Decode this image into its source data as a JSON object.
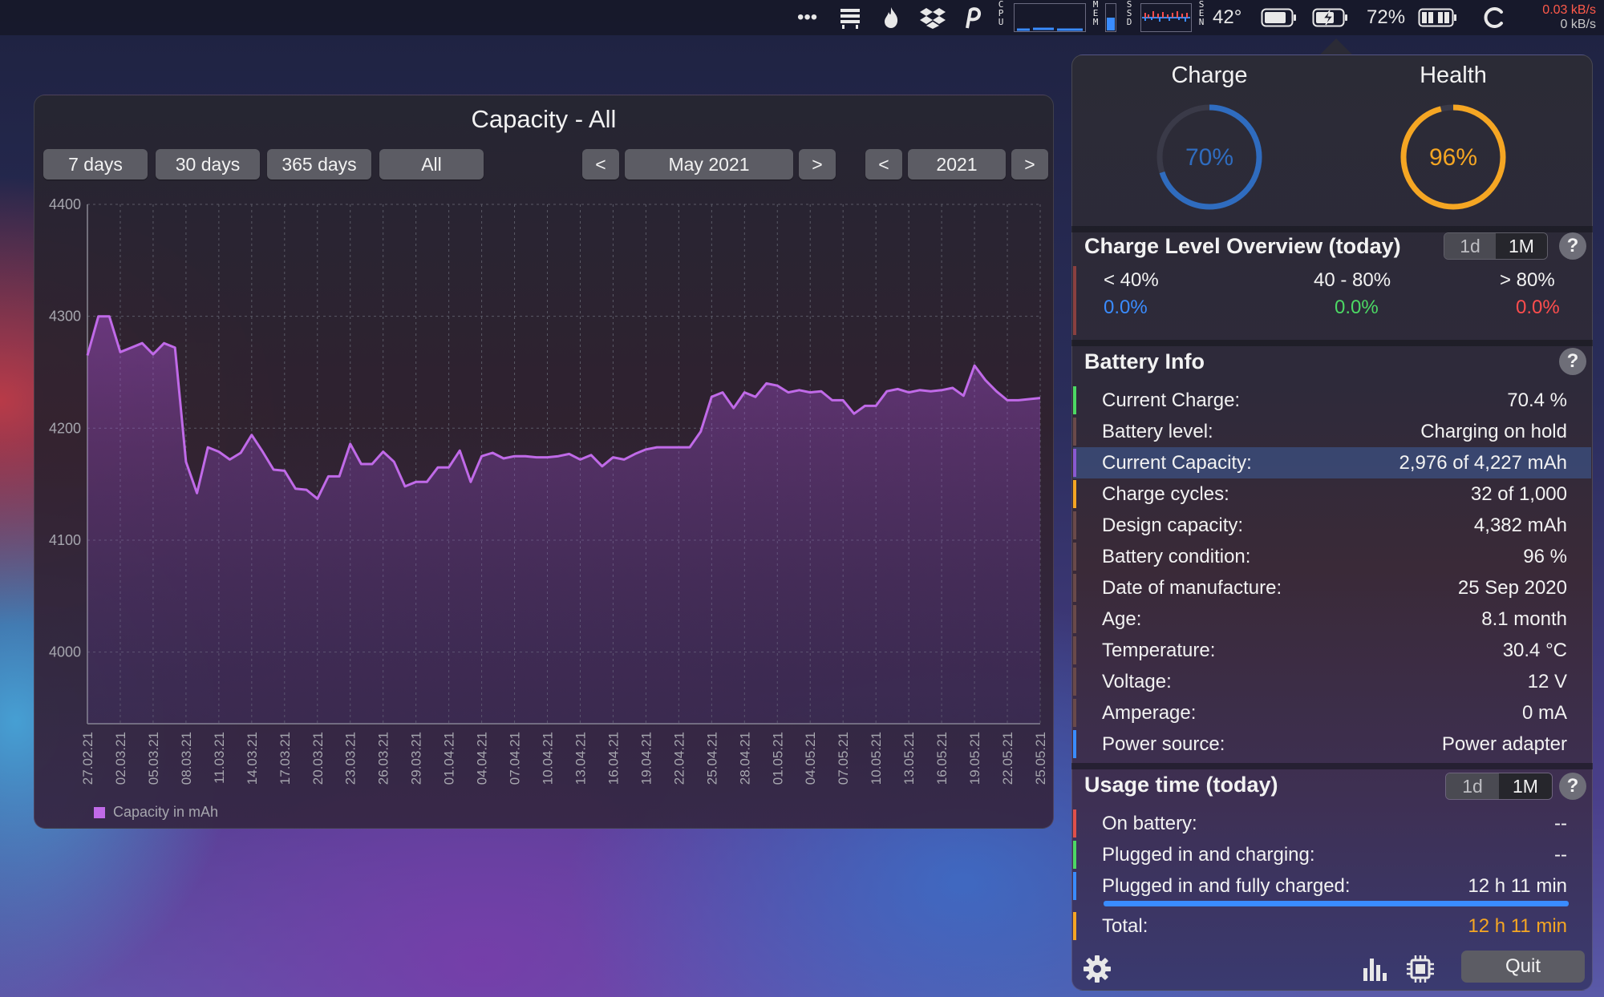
{
  "menubar": {
    "dots": "•••",
    "cpu_letters": [
      "C",
      "P",
      "U"
    ],
    "mem_letters": [
      "M",
      "E",
      "M"
    ],
    "ssd_letters": [
      "S",
      "S",
      "D"
    ],
    "sen_letters": [
      "S",
      "E",
      "N"
    ],
    "temperature": "42°",
    "battery_percent": "72%",
    "net_up": "0.03 kB/s",
    "net_down": "0 kB/s",
    "icons": [
      "more-icon",
      "keyboard-icon",
      "flame-icon",
      "dropbox-icon",
      "parking-icon",
      "battery-icon",
      "battery-charging-icon",
      "battery-plug-icon",
      "sync-icon"
    ]
  },
  "chart_window": {
    "title": "Capacity - All",
    "range_buttons": [
      "7 days",
      "30 days",
      "365 days",
      "All"
    ],
    "month_prev": "<",
    "month_label": "May 2021",
    "month_next": ">",
    "year_prev": "<",
    "year_label": "2021",
    "year_next": ">"
  },
  "chart_data": {
    "type": "area",
    "title": "Capacity - All",
    "xlabel": "",
    "ylabel": "",
    "ylim": [
      3936,
      4400
    ],
    "yticks": [
      4000,
      4100,
      4200,
      4300,
      4400
    ],
    "x_tick_labels": [
      "27.02.21",
      "02.03.21",
      "05.03.21",
      "08.03.21",
      "11.03.21",
      "14.03.21",
      "17.03.21",
      "20.03.21",
      "23.03.21",
      "26.03.21",
      "29.03.21",
      "01.04.21",
      "04.04.21",
      "07.04.21",
      "10.04.21",
      "13.04.21",
      "16.04.21",
      "19.04.21",
      "22.04.21",
      "25.04.21",
      "28.04.21",
      "01.05.21",
      "04.05.21",
      "07.05.21",
      "10.05.21",
      "13.05.21",
      "16.05.21",
      "19.05.21",
      "22.05.21",
      "25.05.21"
    ],
    "grid": true,
    "legend_position": "bottom-left",
    "series": [
      {
        "name": "Capacity in mAh",
        "color": "#c06ae8",
        "values": [
          4265,
          4300,
          4300,
          4268,
          4272,
          4276,
          4266,
          4276,
          4272,
          4170,
          4142,
          4183,
          4179,
          4172,
          4178,
          4194,
          4179,
          4163,
          4162,
          4146,
          4145,
          4137,
          4157,
          4157,
          4186,
          4168,
          4168,
          4179,
          4170,
          4148,
          4152,
          4152,
          4165,
          4165,
          4180,
          4152,
          4175,
          4178,
          4173,
          4175,
          4175,
          4174,
          4174,
          4175,
          4177,
          4172,
          4176,
          4166,
          4174,
          4172,
          4177,
          4181,
          4183,
          4183,
          4183,
          4183,
          4197,
          4228,
          4232,
          4218,
          4232,
          4228,
          4240,
          4238,
          4232,
          4234,
          4232,
          4233,
          4225,
          4225,
          4213,
          4220,
          4220,
          4233,
          4235,
          4232,
          4234,
          4233,
          4234,
          4236,
          4229,
          4256,
          4243,
          4233,
          4225,
          4225,
          4226,
          4227
        ]
      }
    ],
    "legend": [
      "Capacity in mAh"
    ]
  },
  "popover": {
    "charge_title": "Charge",
    "charge_value": "70%",
    "charge_fraction": 0.7,
    "charge_color": "#2f6cbf",
    "health_title": "Health",
    "health_value": "96%",
    "health_fraction": 0.96,
    "health_color": "#f5a623",
    "overview_title": "Charge Level Overview (today)",
    "toggle_1d": "1d",
    "toggle_1m": "1M",
    "help": "?",
    "levels": [
      {
        "label": "< 40%",
        "value": "0.0%",
        "color": "#3a8cff"
      },
      {
        "label": "40 - 80%",
        "value": "0.0%",
        "color": "#4cd964"
      },
      {
        "label": "> 80%",
        "value": "0.0%",
        "color": "#ff4d4d"
      }
    ],
    "battery_info_title": "Battery Info",
    "battery_info": [
      {
        "label": "Current Charge:",
        "value": "70.4 %",
        "bar": "#4cd964"
      },
      {
        "label": "Battery level:",
        "value": "Charging on hold",
        "bar": "#6a4a4a"
      },
      {
        "label": "Current Capacity:",
        "value": "2,976 of 4,227 mAh",
        "bar": "#8a5ad0"
      },
      {
        "label": "Charge cycles:",
        "value": "32 of 1,000",
        "bar": "#f5a623"
      },
      {
        "label": "Design capacity:",
        "value": "4,382 mAh",
        "bar": "#6a4a4a"
      },
      {
        "label": "Battery condition:",
        "value": "96 %",
        "bar": "#6a4a4a"
      },
      {
        "label": "Date of manufacture:",
        "value": "25 Sep 2020",
        "bar": "#6a4a4a"
      },
      {
        "label": "Age:",
        "value": "8.1 month",
        "bar": "#6a4a4a"
      },
      {
        "label": "Temperature:",
        "value": "30.4 °C",
        "bar": "#6a4a4a"
      },
      {
        "label": "Voltage:",
        "value": "12 V",
        "bar": "#6a4a4a"
      },
      {
        "label": "Amperage:",
        "value": "0 mA",
        "bar": "#6a4a4a"
      },
      {
        "label": "Power source:",
        "value": "Power adapter",
        "bar": "#3a8cff"
      }
    ],
    "usage_title": "Usage time (today)",
    "usage": [
      {
        "label": "On battery:",
        "value": "--",
        "bar": "#e0504a"
      },
      {
        "label": "Plugged in and charging:",
        "value": "--",
        "bar": "#4cd964"
      },
      {
        "label": "Plugged in and fully charged:",
        "value": "12 h 11 min",
        "bar": "#3a8cff"
      }
    ],
    "usage_progress_fraction": 1.0,
    "total_label": "Total:",
    "total_value": "12 h 11 min",
    "total_color": "#f5a623",
    "quit_label": "Quit"
  }
}
